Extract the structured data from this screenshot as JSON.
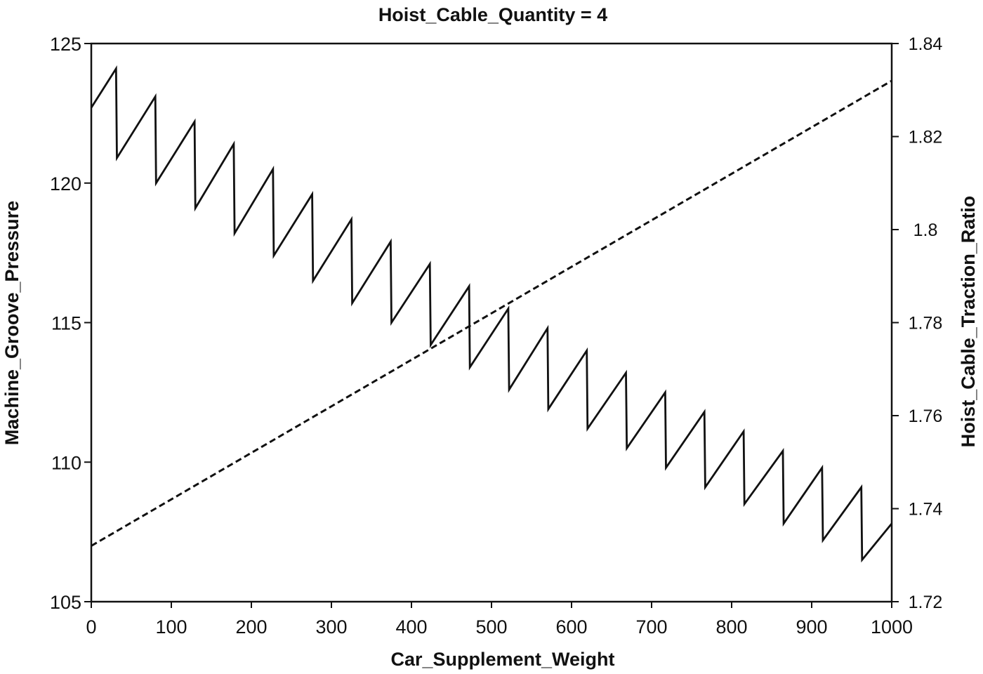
{
  "chart_data": {
    "type": "line",
    "title": "Hoist_Cable_Quantity = 4",
    "xlabel": "Car_Supplement_Weight",
    "ylabel_left": "Machine_Groove_Pressure",
    "ylabel_right": "Hoist_Cable_Traction_Ratio",
    "xlim": [
      0,
      1000
    ],
    "ylim_left": [
      105,
      125
    ],
    "ylim_right": [
      1.72,
      1.84
    ],
    "x_ticks": [
      "0",
      "100",
      "200",
      "300",
      "400",
      "500",
      "600",
      "700",
      "800",
      "900",
      "1000"
    ],
    "y_ticks_left": [
      "105",
      "110",
      "115",
      "120",
      "125"
    ],
    "y_ticks_right": [
      "1.72",
      "1.74",
      "1.76",
      "1.78",
      "1.8",
      "1.82",
      "1.84"
    ],
    "grid": false,
    "legend": "none",
    "series": [
      {
        "axis": "left",
        "style": "solid",
        "color": "#111111",
        "points": [
          [
            0,
            122.7
          ],
          [
            31,
            124.1
          ],
          [
            32,
            120.9
          ],
          [
            80,
            123.1
          ],
          [
            81,
            120.0
          ],
          [
            129,
            122.2
          ],
          [
            130,
            119.1
          ],
          [
            178,
            121.4
          ],
          [
            179,
            118.2
          ],
          [
            227,
            120.5
          ],
          [
            228,
            117.4
          ],
          [
            276,
            119.6
          ],
          [
            277,
            116.5
          ],
          [
            325,
            118.7
          ],
          [
            326,
            115.7
          ],
          [
            374,
            117.9
          ],
          [
            375,
            115.0
          ],
          [
            423,
            117.1
          ],
          [
            424,
            114.2
          ],
          [
            472,
            116.3
          ],
          [
            473,
            113.4
          ],
          [
            521,
            115.5
          ],
          [
            522,
            112.6
          ],
          [
            570,
            114.8
          ],
          [
            571,
            111.9
          ],
          [
            619,
            114.0
          ],
          [
            620,
            111.2
          ],
          [
            668,
            113.2
          ],
          [
            669,
            110.5
          ],
          [
            717,
            112.5
          ],
          [
            718,
            109.8
          ],
          [
            766,
            111.8
          ],
          [
            767,
            109.1
          ],
          [
            815,
            111.1
          ],
          [
            816,
            108.5
          ],
          [
            864,
            110.4
          ],
          [
            865,
            107.8
          ],
          [
            913,
            109.8
          ],
          [
            914,
            107.2
          ],
          [
            962,
            109.1
          ],
          [
            963,
            106.5
          ],
          [
            1000,
            107.8
          ]
        ]
      },
      {
        "axis": "right",
        "style": "dashed",
        "color": "#111111",
        "points": [
          [
            0,
            1.732
          ],
          [
            1000,
            1.832
          ]
        ]
      }
    ]
  }
}
